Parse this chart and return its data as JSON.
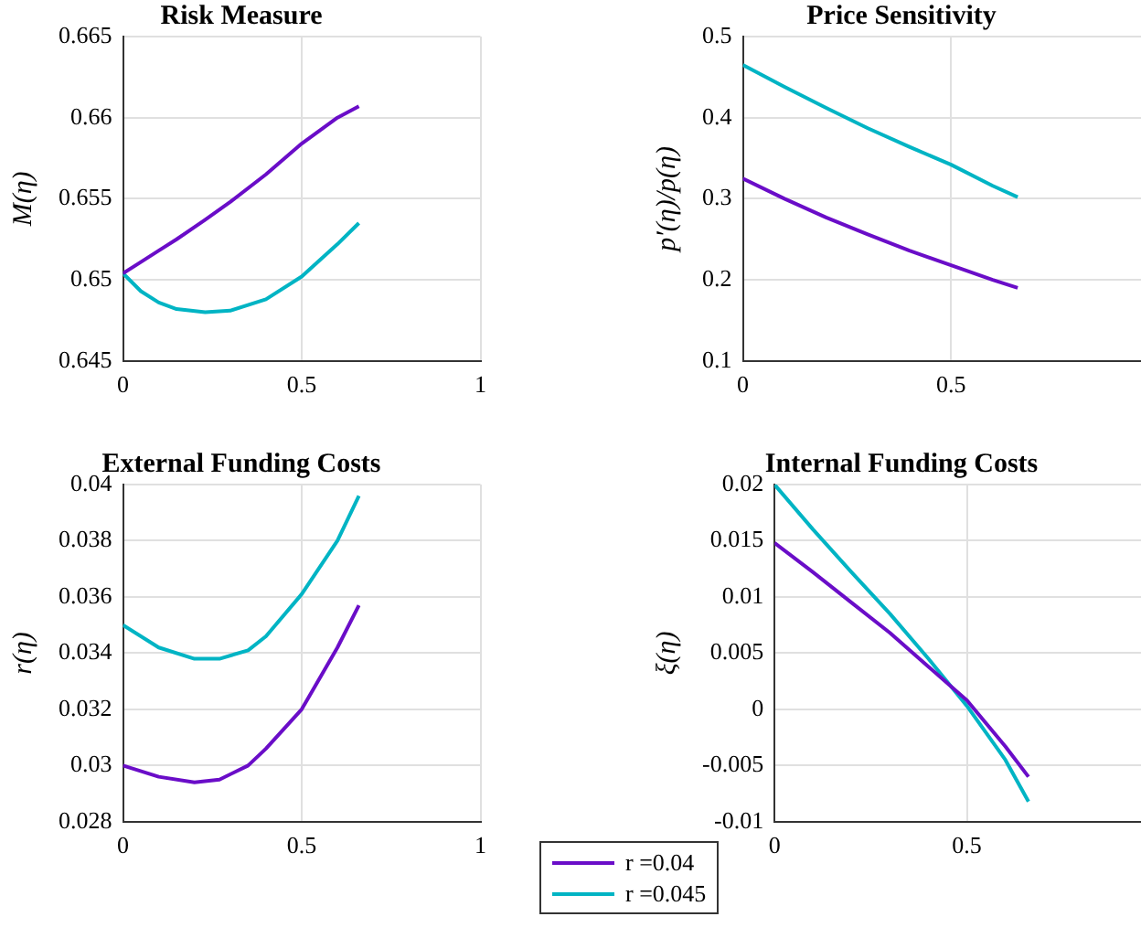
{
  "chart_data": [
    {
      "type": "line",
      "title": "Risk Measure",
      "ylabel": "M(η)",
      "x": [
        0,
        0.05,
        0.1,
        0.15,
        0.23,
        0.3,
        0.4,
        0.5,
        0.6,
        0.66
      ],
      "xlim": [
        0,
        1
      ],
      "xticks": [
        0,
        0.5,
        1
      ],
      "ylim": [
        0.645,
        0.665
      ],
      "yticks": [
        0.645,
        0.65,
        0.655,
        0.66,
        0.665
      ],
      "grid": true,
      "legend": "bottom",
      "series": [
        {
          "name": "r =0.04",
          "color": "#6a0dc8",
          "values": [
            0.6504,
            0.6511,
            0.6518,
            0.6525,
            0.6537,
            0.6548,
            0.6565,
            0.6584,
            0.66,
            0.6607
          ]
        },
        {
          "name": "r =0.045",
          "color": "#00b4c4",
          "values": [
            0.6504,
            0.6493,
            0.6486,
            0.6482,
            0.648,
            0.6481,
            0.6488,
            0.6502,
            0.6522,
            0.6535
          ]
        }
      ]
    },
    {
      "type": "line",
      "title": "Price Sensitivity",
      "ylabel": "p′(η)/p(η)",
      "x": [
        0,
        0.1,
        0.2,
        0.3,
        0.4,
        0.5,
        0.6,
        0.66
      ],
      "xlim": [
        0,
        1
      ],
      "xticks": [
        0,
        0.5
      ],
      "ylim": [
        0.1,
        0.5
      ],
      "yticks": [
        0.1,
        0.2,
        0.3,
        0.4,
        0.5
      ],
      "grid": true,
      "series": [
        {
          "color": "#6a0dc8",
          "values": [
            0.325,
            0.3,
            0.277,
            0.256,
            0.236,
            0.218,
            0.2,
            0.19
          ]
        },
        {
          "color": "#00b4c4",
          "values": [
            0.465,
            0.438,
            0.412,
            0.387,
            0.364,
            0.342,
            0.316,
            0.302
          ]
        }
      ]
    },
    {
      "type": "line",
      "title": "External Funding Costs",
      "ylabel": "r(η)",
      "x": [
        0,
        0.1,
        0.2,
        0.27,
        0.35,
        0.4,
        0.5,
        0.6,
        0.66
      ],
      "xlim": [
        0,
        1
      ],
      "xticks": [
        0,
        0.5,
        1
      ],
      "ylim": [
        0.028,
        0.04
      ],
      "yticks": [
        0.028,
        0.03,
        0.032,
        0.034,
        0.036,
        0.038,
        0.04
      ],
      "grid": true,
      "series": [
        {
          "color": "#6a0dc8",
          "values": [
            0.03,
            0.0296,
            0.0294,
            0.0295,
            0.03,
            0.0306,
            0.032,
            0.0342,
            0.0357
          ]
        },
        {
          "color": "#00b4c4",
          "values": [
            0.035,
            0.0342,
            0.0338,
            0.0338,
            0.0341,
            0.0346,
            0.0361,
            0.038,
            0.0396
          ]
        }
      ]
    },
    {
      "type": "line",
      "title": "Internal Funding Costs",
      "ylabel": "ξ(η)",
      "x": [
        0,
        0.1,
        0.2,
        0.3,
        0.4,
        0.5,
        0.6,
        0.66
      ],
      "xlim": [
        0,
        1
      ],
      "xticks": [
        0,
        0.5
      ],
      "ylim": [
        -0.01,
        0.02
      ],
      "yticks": [
        -0.01,
        -0.005,
        0,
        0.005,
        0.01,
        0.015,
        0.02
      ],
      "grid": true,
      "series": [
        {
          "color": "#6a0dc8",
          "values": [
            0.0148,
            0.0122,
            0.0095,
            0.0068,
            0.0038,
            0.0008,
            -0.0033,
            -0.006
          ]
        },
        {
          "color": "#00b4c4",
          "values": [
            0.02,
            0.016,
            0.0122,
            0.0085,
            0.0045,
            0.0003,
            -0.0045,
            -0.0082
          ]
        }
      ]
    }
  ]
}
